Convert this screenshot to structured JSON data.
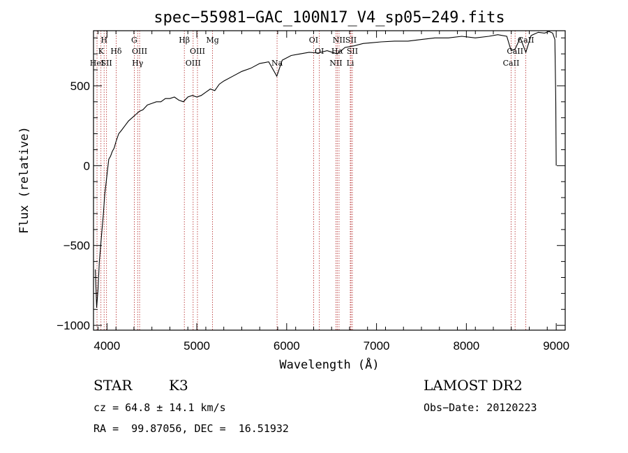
{
  "chart_data": {
    "type": "line",
    "title": "spec−55981−GAC_100N17_V4_sp05−249.fits",
    "xlabel": "Wavelength (Å)",
    "ylabel": "Flux (relative)",
    "xlim": [
      3850,
      9100
    ],
    "ylim": [
      -1030,
      845
    ],
    "x_ticks": [
      4000,
      5000,
      6000,
      7000,
      8000,
      9000
    ],
    "y_ticks": [
      -1000,
      -500,
      0,
      500
    ],
    "x_tick_labels": [
      "4000",
      "5000",
      "6000",
      "7000",
      "8000",
      "9000"
    ],
    "y_tick_labels": [
      "−1000",
      "−500",
      "0",
      "500"
    ],
    "grid": false,
    "series": [
      {
        "x": [
          3870,
          3885,
          3900,
          3915,
          3930,
          3945,
          3960,
          3975,
          3990,
          4005,
          4020,
          4040,
          4060,
          4080,
          4100,
          4130,
          4160,
          4200,
          4240,
          4280,
          4320,
          4360,
          4400,
          4450,
          4500,
          4550,
          4600,
          4650,
          4700,
          4750,
          4800,
          4850,
          4900,
          4950,
          5000,
          5050,
          5100,
          5150,
          5200,
          5250,
          5300,
          5400,
          5500,
          5600,
          5700,
          5800,
          5890,
          5950,
          6050,
          6150,
          6250,
          6350,
          6450,
          6563,
          6650,
          6750,
          6850,
          6950,
          7050,
          7200,
          7350,
          7500,
          7650,
          7800,
          7950,
          8100,
          8250,
          8350,
          8450,
          8498,
          8542,
          8600,
          8662,
          8720,
          8800,
          8870,
          8920,
          8960,
          8985,
          8995,
          9000
        ],
        "y": [
          -650,
          -890,
          -780,
          -600,
          -500,
          -400,
          -300,
          -180,
          -110,
          -30,
          40,
          60,
          90,
          110,
          150,
          200,
          220,
          250,
          280,
          300,
          320,
          340,
          350,
          380,
          390,
          400,
          400,
          420,
          420,
          430,
          410,
          400,
          430,
          440,
          430,
          440,
          460,
          480,
          470,
          510,
          530,
          560,
          590,
          610,
          640,
          650,
          560,
          660,
          690,
          700,
          710,
          705,
          720,
          700,
          740,
          750,
          765,
          770,
          775,
          780,
          780,
          790,
          800,
          800,
          810,
          800,
          810,
          820,
          810,
          720,
          730,
          800,
          710,
          815,
          835,
          830,
          840,
          830,
          790,
          400,
          0
        ]
      }
    ],
    "line_markers": [
      {
        "x": 3933,
        "label": "K",
        "row": 2
      },
      {
        "x": 3968,
        "label": "H",
        "row": 1
      },
      {
        "x": 3889,
        "label": "HeI",
        "row": 3
      },
      {
        "x": 3995,
        "label": "SII",
        "row": 3
      },
      {
        "x": 4102,
        "label": "Hδ",
        "row": 2
      },
      {
        "x": 4304,
        "label": "G",
        "row": 1
      },
      {
        "x": 4341,
        "label": "Hγ",
        "row": 3
      },
      {
        "x": 4363,
        "label": "OIII",
        "row": 2
      },
      {
        "x": 4861,
        "label": "Hβ",
        "row": 1
      },
      {
        "x": 4959,
        "label": "OIII",
        "row": 3
      },
      {
        "x": 5007,
        "label": "OIII",
        "row": 2
      },
      {
        "x": 5175,
        "label": "Mg",
        "row": 1
      },
      {
        "x": 5893,
        "label": "Na",
        "row": 3
      },
      {
        "x": 6300,
        "label": "OI",
        "row": 1
      },
      {
        "x": 6364,
        "label": "OI",
        "row": 2
      },
      {
        "x": 6548,
        "label": "NII",
        "row": 3
      },
      {
        "x": 6563,
        "label": "Hα",
        "row": 2
      },
      {
        "x": 6583,
        "label": "NII",
        "row": 1
      },
      {
        "x": 6708,
        "label": "Li",
        "row": 3
      },
      {
        "x": 6716,
        "label": "SII",
        "row": 1
      },
      {
        "x": 6731,
        "label": "SII",
        "row": 2
      },
      {
        "x": 8498,
        "label": "CaII",
        "row": 3
      },
      {
        "x": 8542,
        "label": "CaII",
        "row": 2
      },
      {
        "x": 8662,
        "label": "CaII",
        "row": 1
      }
    ]
  },
  "info": {
    "object_type": "STAR",
    "subclass": "K3",
    "survey": "LAMOST DR2",
    "cz": "cz = 64.8 ± 14.1 km/s",
    "obs_date": "Obs−Date: 20120223",
    "coords": "RA =  99.87056, DEC =  16.51932"
  },
  "colors": {
    "spectrum": "#000000",
    "line_marker": "#b22222",
    "axes": "#000000"
  }
}
